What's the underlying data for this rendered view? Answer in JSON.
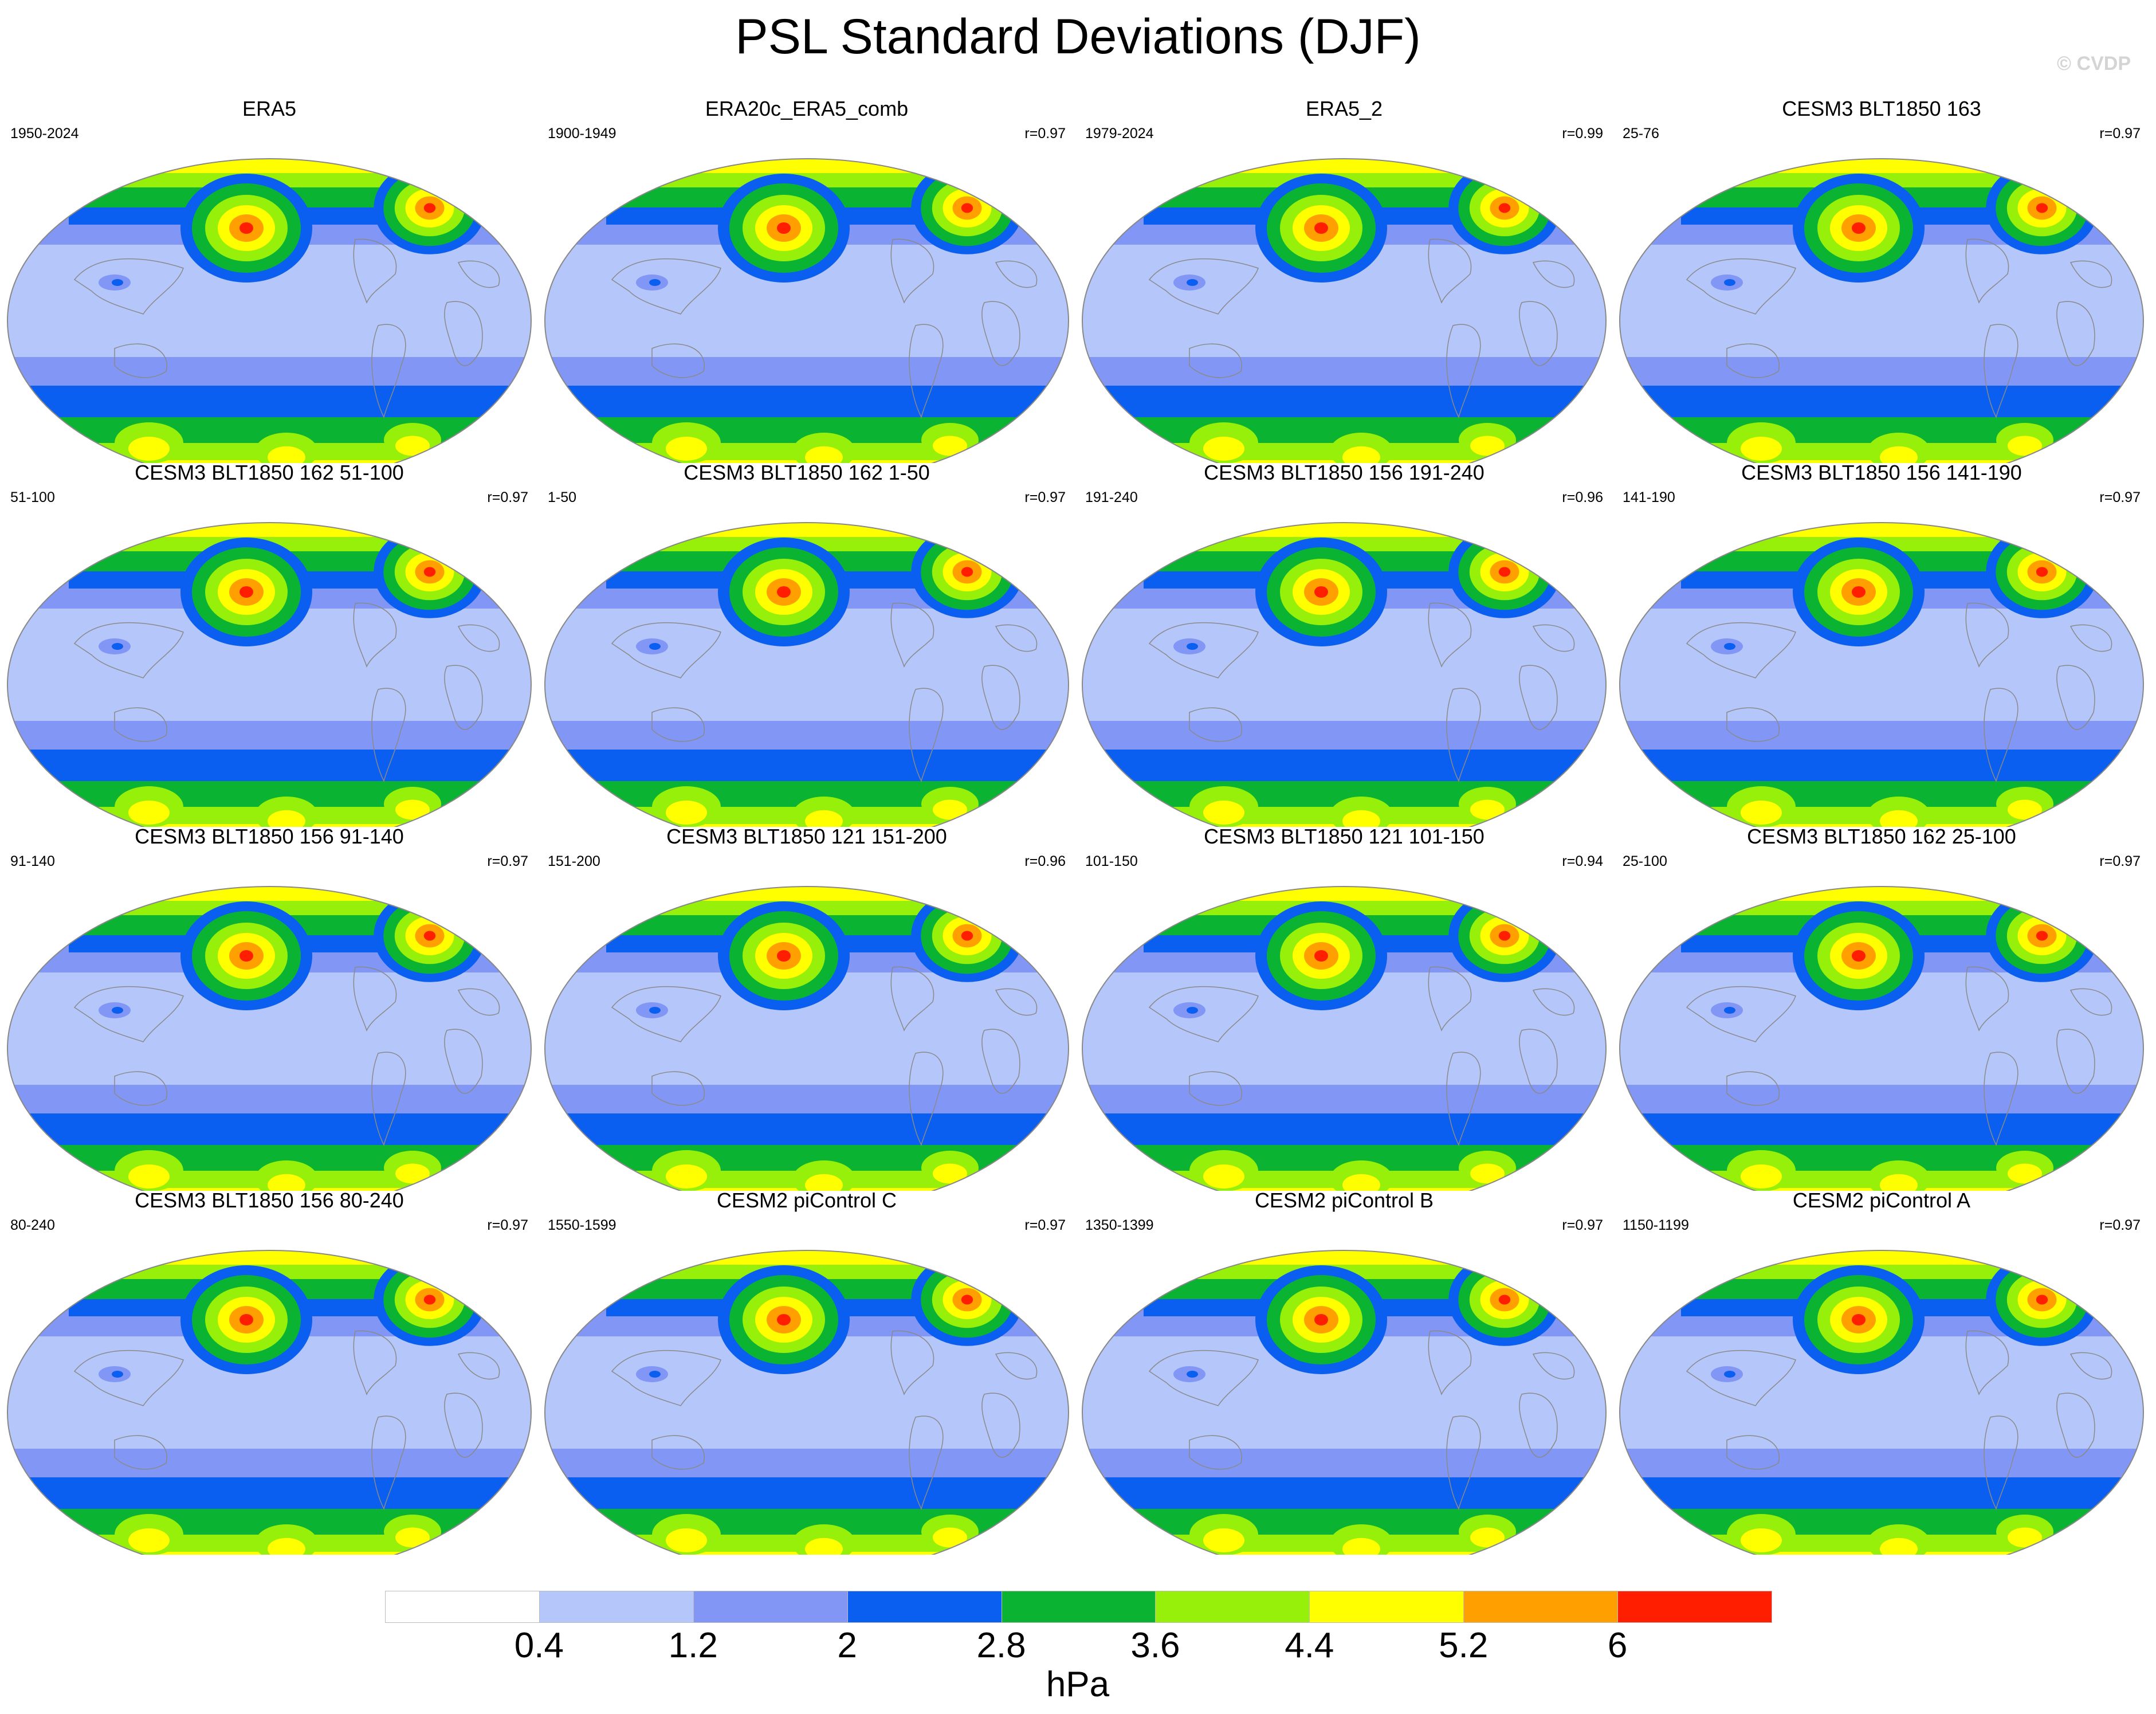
{
  "title": "PSL Standard Deviations (DJF)",
  "watermark": "© CVDP",
  "panels": [
    {
      "name": "ERA5",
      "years": "1950-2024",
      "r": ""
    },
    {
      "name": "ERA20c_ERA5_comb",
      "years": "1900-1949",
      "r": "r=0.97"
    },
    {
      "name": "ERA5_2",
      "years": "1979-2024",
      "r": "r=0.99"
    },
    {
      "name": "CESM3 BLT1850 163",
      "years": "25-76",
      "r": "r=0.97"
    },
    {
      "name": "CESM3 BLT1850 162 51-100",
      "years": "51-100",
      "r": "r=0.97"
    },
    {
      "name": "CESM3 BLT1850 162 1-50",
      "years": "1-50",
      "r": "r=0.97"
    },
    {
      "name": "CESM3 BLT1850 156 191-240",
      "years": "191-240",
      "r": "r=0.96"
    },
    {
      "name": "CESM3 BLT1850 156 141-190",
      "years": "141-190",
      "r": "r=0.97"
    },
    {
      "name": "CESM3 BLT1850 156 91-140",
      "years": "91-140",
      "r": "r=0.97"
    },
    {
      "name": "CESM3 BLT1850 121 151-200",
      "years": "151-200",
      "r": "r=0.96"
    },
    {
      "name": "CESM3 BLT1850 121 101-150",
      "years": "101-150",
      "r": "r=0.94"
    },
    {
      "name": "CESM3 BLT1850 162 25-100",
      "years": "25-100",
      "r": "r=0.97"
    },
    {
      "name": "CESM3 BLT1850 156 80-240",
      "years": "80-240",
      "r": "r=0.97"
    },
    {
      "name": "CESM2 piControl C",
      "years": "1550-1599",
      "r": "r=0.97"
    },
    {
      "name": "CESM2 piControl B",
      "years": "1350-1399",
      "r": "r=0.97"
    },
    {
      "name": "CESM2 piControl A",
      "years": "1150-1199",
      "r": "r=0.97"
    }
  ],
  "colorbar": {
    "colors": [
      "#ffffff",
      "#b4c6fa",
      "#8296f5",
      "#0a5ff0",
      "#0ab432",
      "#96f00a",
      "#ffff00",
      "#ffa000",
      "#ff1e00"
    ],
    "tick_labels": [
      "0.4",
      "1.2",
      "2",
      "2.8",
      "3.6",
      "4.4",
      "5.2",
      "6"
    ],
    "units": "hPa"
  }
}
